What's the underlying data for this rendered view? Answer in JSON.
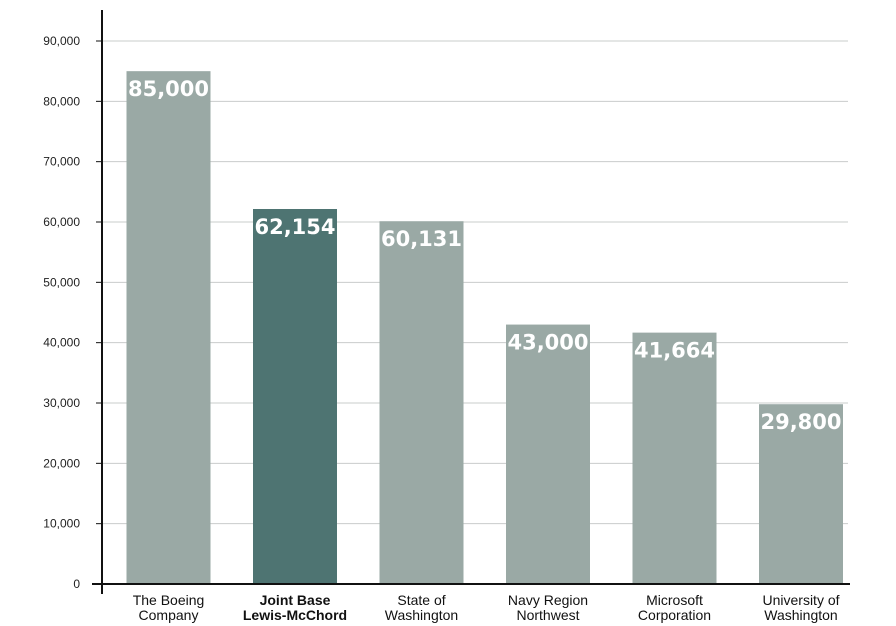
{
  "chart_data": {
    "type": "bar",
    "categories": [
      [
        "The Boeing",
        "Company"
      ],
      [
        "Joint Base",
        "Lewis-McChord"
      ],
      [
        "State of",
        "Washington"
      ],
      [
        "Navy Region",
        "Northwest"
      ],
      [
        "Microsoft",
        "Corporation"
      ],
      [
        "University of",
        "Washington"
      ]
    ],
    "values": [
      85000,
      62154,
      60131,
      43000,
      41664,
      29800
    ],
    "data_labels": [
      "85,000",
      "62,154",
      "60,131",
      "43,000",
      "41,664",
      "29,800"
    ],
    "highlight_index": 1,
    "title": "",
    "xlabel": "",
    "ylabel": "",
    "ylim": [
      0,
      90000
    ],
    "yticks": [
      0,
      10000,
      20000,
      30000,
      40000,
      50000,
      60000,
      70000,
      80000,
      90000
    ],
    "ytick_labels": [
      "0",
      "10,000",
      "20,000",
      "30,000",
      "40,000",
      "50,000",
      "60,000",
      "70,000",
      "80,000",
      "90,000"
    ],
    "grid": true,
    "legend": "none",
    "colors": {
      "bar": "#9aa9a5",
      "bar_highlight": "#4e7472",
      "grid": "#c9cccb",
      "axis": "#111111"
    }
  }
}
